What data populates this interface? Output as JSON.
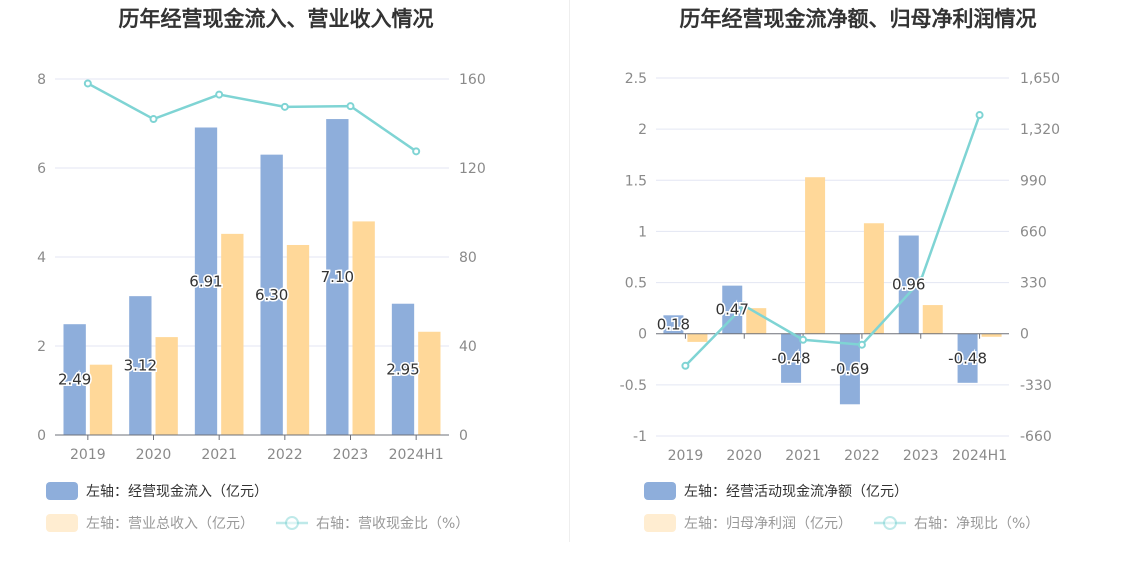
{
  "colors": {
    "bar1": "#8eaedb",
    "bar2": "#ffd899",
    "line": "#7fd4d4",
    "grid": "#e3e6f3",
    "axis": "#6e7079"
  },
  "chart_data": [
    {
      "type": "bar",
      "title": "历年经营现金流入、营业收入情况",
      "categories": [
        "2019",
        "2020",
        "2021",
        "2022",
        "2023",
        "2024H1"
      ],
      "left_axis": {
        "ylim": [
          0,
          8
        ],
        "ticks": [
          "0",
          "2",
          "4",
          "6",
          "8"
        ]
      },
      "right_axis": {
        "ylim": [
          0,
          160
        ],
        "ticks": [
          "0",
          "40",
          "80",
          "120",
          "160"
        ]
      },
      "grid": true,
      "legend_position": "bottom",
      "series": [
        {
          "name": "左轴：经营现金流入（亿元）",
          "type": "bar",
          "axis": "left",
          "values": [
            2.49,
            3.12,
            6.91,
            6.3,
            7.1,
            2.95
          ],
          "labels": [
            "2.49",
            "3.12",
            "6.91",
            "6.30",
            "7.10",
            "2.95"
          ]
        },
        {
          "name": "左轴：营业总收入（亿元）",
          "type": "bar",
          "axis": "left",
          "values": [
            1.58,
            2.2,
            4.52,
            4.27,
            4.8,
            2.32
          ]
        },
        {
          "name": "右轴：营收现金比（%）",
          "type": "line",
          "axis": "right",
          "values": [
            158,
            142,
            153,
            147.5,
            147.8,
            127.5
          ]
        }
      ]
    },
    {
      "type": "bar",
      "title": "历年经营现金流净额、归母净利润情况",
      "categories": [
        "2019",
        "2020",
        "2021",
        "2022",
        "2023",
        "2024H1"
      ],
      "left_axis": {
        "ylim": [
          -1,
          2.5
        ],
        "ticks": [
          "-1",
          "-0.5",
          "0",
          "0.5",
          "1",
          "1.5",
          "2",
          "2.5"
        ]
      },
      "right_axis": {
        "ylim": [
          -660,
          1650
        ],
        "ticks": [
          "-660",
          "-330",
          "0",
          "330",
          "660",
          "990",
          "1,320",
          "1,650"
        ]
      },
      "grid": true,
      "legend_position": "bottom",
      "series": [
        {
          "name": "左轴：经营活动现金流净额（亿元）",
          "type": "bar",
          "axis": "left",
          "values": [
            0.18,
            0.47,
            -0.48,
            -0.69,
            0.96,
            -0.48
          ],
          "labels": [
            "0.18",
            "0.47",
            "-0.48",
            "-0.69",
            "0.96",
            "-0.48"
          ]
        },
        {
          "name": "左轴：归母净利润（亿元）",
          "type": "bar",
          "axis": "left",
          "values": [
            -0.08,
            0.25,
            1.53,
            1.08,
            0.28,
            -0.03
          ]
        },
        {
          "name": "右轴：净现比（%）",
          "type": "line",
          "axis": "right",
          "values": [
            -207,
            181,
            -39,
            -71,
            343,
            1411
          ]
        }
      ]
    }
  ]
}
